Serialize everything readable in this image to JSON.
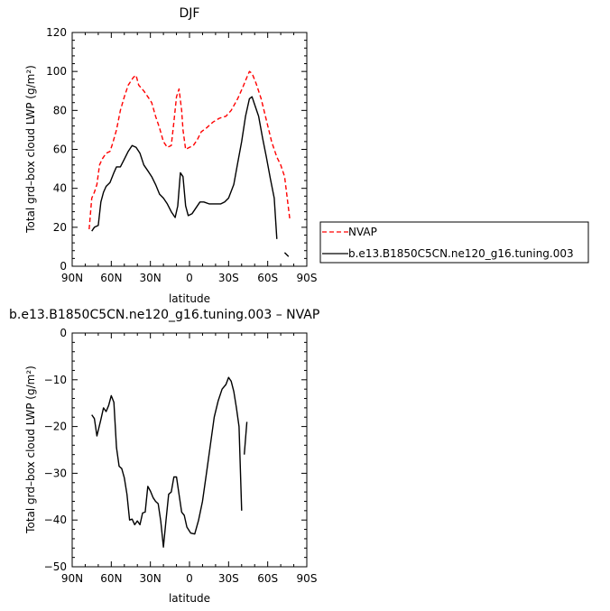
{
  "chart_data": [
    {
      "type": "line",
      "title": "DJF",
      "xlabel": "latitude",
      "ylabel": "Total grd–box cloud LWP (g/m²)",
      "xlim": [
        -90,
        90
      ],
      "ylim": [
        0,
        120
      ],
      "x_ticks": [
        -90,
        -60,
        -30,
        0,
        30,
        60,
        90
      ],
      "x_tick_labels": [
        "90N",
        "60N",
        "30N",
        "0",
        "30S",
        "60S",
        "90S"
      ],
      "y_ticks": [
        0,
        20,
        40,
        60,
        80,
        100,
        120
      ],
      "legend_placement": "right",
      "series": [
        {
          "name": "NVAP",
          "color": "#ff0000",
          "dash": "dashed",
          "segments": [
            [
              [
                -77,
                19
              ],
              [
                -75,
                35
              ],
              [
                -73,
                38
              ],
              [
                -71,
                42
              ],
              [
                -69,
                52
              ],
              [
                -67,
                55
              ],
              [
                -64,
                58
              ],
              [
                -61,
                59
              ],
              [
                -59,
                63
              ],
              [
                -56,
                70
              ],
              [
                -53,
                80
              ],
              [
                -50,
                87
              ],
              [
                -47,
                93
              ],
              [
                -43,
                97
              ],
              [
                -41,
                98
              ],
              [
                -39,
                93
              ],
              [
                -35,
                90
              ],
              [
                -32,
                87
              ],
              [
                -29,
                84
              ],
              [
                -26,
                77
              ],
              [
                -23,
                71
              ],
              [
                -20,
                64
              ],
              [
                -17,
                61
              ],
              [
                -14,
                62
              ],
              [
                -12,
                74
              ],
              [
                -10,
                87
              ],
              [
                -8,
                91
              ],
              [
                -6,
                80
              ],
              [
                -5,
                70
              ],
              [
                -3,
                60
              ],
              [
                0,
                61
              ],
              [
                3,
                62
              ],
              [
                6,
                65
              ],
              [
                9,
                69
              ],
              [
                13,
                71
              ],
              [
                18,
                74
              ],
              [
                23,
                76
              ],
              [
                28,
                77
              ],
              [
                32,
                80
              ],
              [
                37,
                86
              ],
              [
                41,
                92
              ],
              [
                44,
                97
              ],
              [
                46,
                100
              ],
              [
                48,
                99
              ],
              [
                51,
                94
              ],
              [
                55,
                86
              ],
              [
                59,
                75
              ],
              [
                63,
                64
              ],
              [
                67,
                56
              ],
              [
                70,
                52
              ],
              [
                73,
                46
              ],
              [
                75,
                35
              ],
              [
                77,
                24
              ]
            ]
          ]
        },
        {
          "name": "b.e13.B1850C5CN.ne120_g16.tuning.003",
          "color": "#000000",
          "dash": "solid",
          "segments": [
            [
              [
                -75,
                18
              ],
              [
                -73,
                20
              ],
              [
                -70,
                21
              ],
              [
                -68,
                33
              ],
              [
                -66,
                38
              ],
              [
                -64,
                41
              ],
              [
                -61,
                43
              ],
              [
                -58,
                48
              ],
              [
                -56,
                51
              ],
              [
                -53,
                51
              ],
              [
                -50,
                55
              ],
              [
                -47,
                59
              ],
              [
                -44,
                62
              ],
              [
                -41,
                61
              ],
              [
                -38,
                58
              ],
              [
                -35,
                52
              ],
              [
                -32,
                49
              ],
              [
                -29,
                46
              ],
              [
                -26,
                42
              ],
              [
                -23,
                37
              ],
              [
                -20,
                35
              ],
              [
                -17,
                32
              ],
              [
                -14,
                28
              ],
              [
                -11,
                25
              ],
              [
                -9,
                31
              ],
              [
                -7,
                48
              ],
              [
                -5,
                46
              ],
              [
                -3,
                31
              ],
              [
                -1,
                26
              ],
              [
                2,
                27
              ],
              [
                5,
                30
              ],
              [
                8,
                33
              ],
              [
                11,
                33
              ],
              [
                15,
                32
              ],
              [
                19,
                32
              ],
              [
                24,
                32
              ],
              [
                27,
                33
              ],
              [
                30,
                35
              ],
              [
                34,
                42
              ],
              [
                37,
                53
              ],
              [
                40,
                64
              ],
              [
                43,
                77
              ],
              [
                46,
                86
              ],
              [
                48,
                87
              ],
              [
                50,
                83
              ],
              [
                53,
                77
              ],
              [
                56,
                66
              ],
              [
                59,
                56
              ],
              [
                62,
                45
              ],
              [
                65,
                35
              ],
              [
                67,
                14
              ]
            ],
            [
              [
                73,
                7
              ],
              [
                76,
                5
              ]
            ]
          ]
        }
      ]
    },
    {
      "type": "line",
      "title": "b.e13.B1850C5CN.ne120_g16.tuning.003  –  NVAP",
      "xlabel": "latitude",
      "ylabel": "Total grd–box cloud LWP (g/m²)",
      "xlim": [
        -90,
        90
      ],
      "ylim": [
        -50,
        0
      ],
      "x_ticks": [
        -90,
        -60,
        -30,
        0,
        30,
        60,
        90
      ],
      "x_tick_labels": [
        "90N",
        "60N",
        "30N",
        "0",
        "30S",
        "60S",
        "90S"
      ],
      "y_ticks": [
        -50,
        -40,
        -30,
        -20,
        -10,
        0
      ],
      "series": [
        {
          "color": "#000000",
          "dash": "solid",
          "segments": [
            [
              [
                -75,
                -17.5
              ],
              [
                -73,
                -18.3
              ],
              [
                -71,
                -22
              ],
              [
                -68,
                -18.5
              ],
              [
                -66,
                -16
              ],
              [
                -64,
                -16.8
              ],
              [
                -62,
                -15.5
              ],
              [
                -60,
                -13.4
              ],
              [
                -58,
                -14.8
              ],
              [
                -56,
                -24.5
              ],
              [
                -54,
                -28.5
              ],
              [
                -52,
                -29
              ],
              [
                -50,
                -31
              ],
              [
                -48,
                -34.5
              ],
              [
                -46,
                -40
              ],
              [
                -44,
                -39.8
              ],
              [
                -42,
                -41
              ],
              [
                -40,
                -40.2
              ],
              [
                -38,
                -41
              ],
              [
                -36,
                -38.5
              ],
              [
                -34,
                -38.3
              ],
              [
                -32,
                -32.8
              ],
              [
                -30,
                -33.8
              ],
              [
                -28,
                -35.2
              ],
              [
                -26,
                -36
              ],
              [
                -24,
                -36.5
              ],
              [
                -22,
                -40.3
              ],
              [
                -20,
                -45.8
              ],
              [
                -18,
                -40
              ],
              [
                -16,
                -34.5
              ],
              [
                -14,
                -34
              ],
              [
                -12,
                -30.8
              ],
              [
                -10,
                -30.8
              ],
              [
                -8,
                -34.5
              ],
              [
                -6,
                -38.3
              ],
              [
                -4,
                -39
              ],
              [
                -2,
                -41.5
              ],
              [
                1,
                -42.8
              ],
              [
                4,
                -43
              ],
              [
                7,
                -40
              ],
              [
                10,
                -36
              ],
              [
                13,
                -30
              ],
              [
                16,
                -24
              ],
              [
                19,
                -18
              ],
              [
                22,
                -14.5
              ],
              [
                25,
                -12
              ],
              [
                28,
                -11
              ],
              [
                30,
                -9.5
              ],
              [
                32,
                -10.3
              ],
              [
                34,
                -12.5
              ],
              [
                36,
                -16
              ],
              [
                38,
                -20
              ],
              [
                40,
                -38
              ]
            ],
            [
              [
                42,
                -26
              ],
              [
                44,
                -19
              ]
            ]
          ]
        }
      ]
    }
  ]
}
